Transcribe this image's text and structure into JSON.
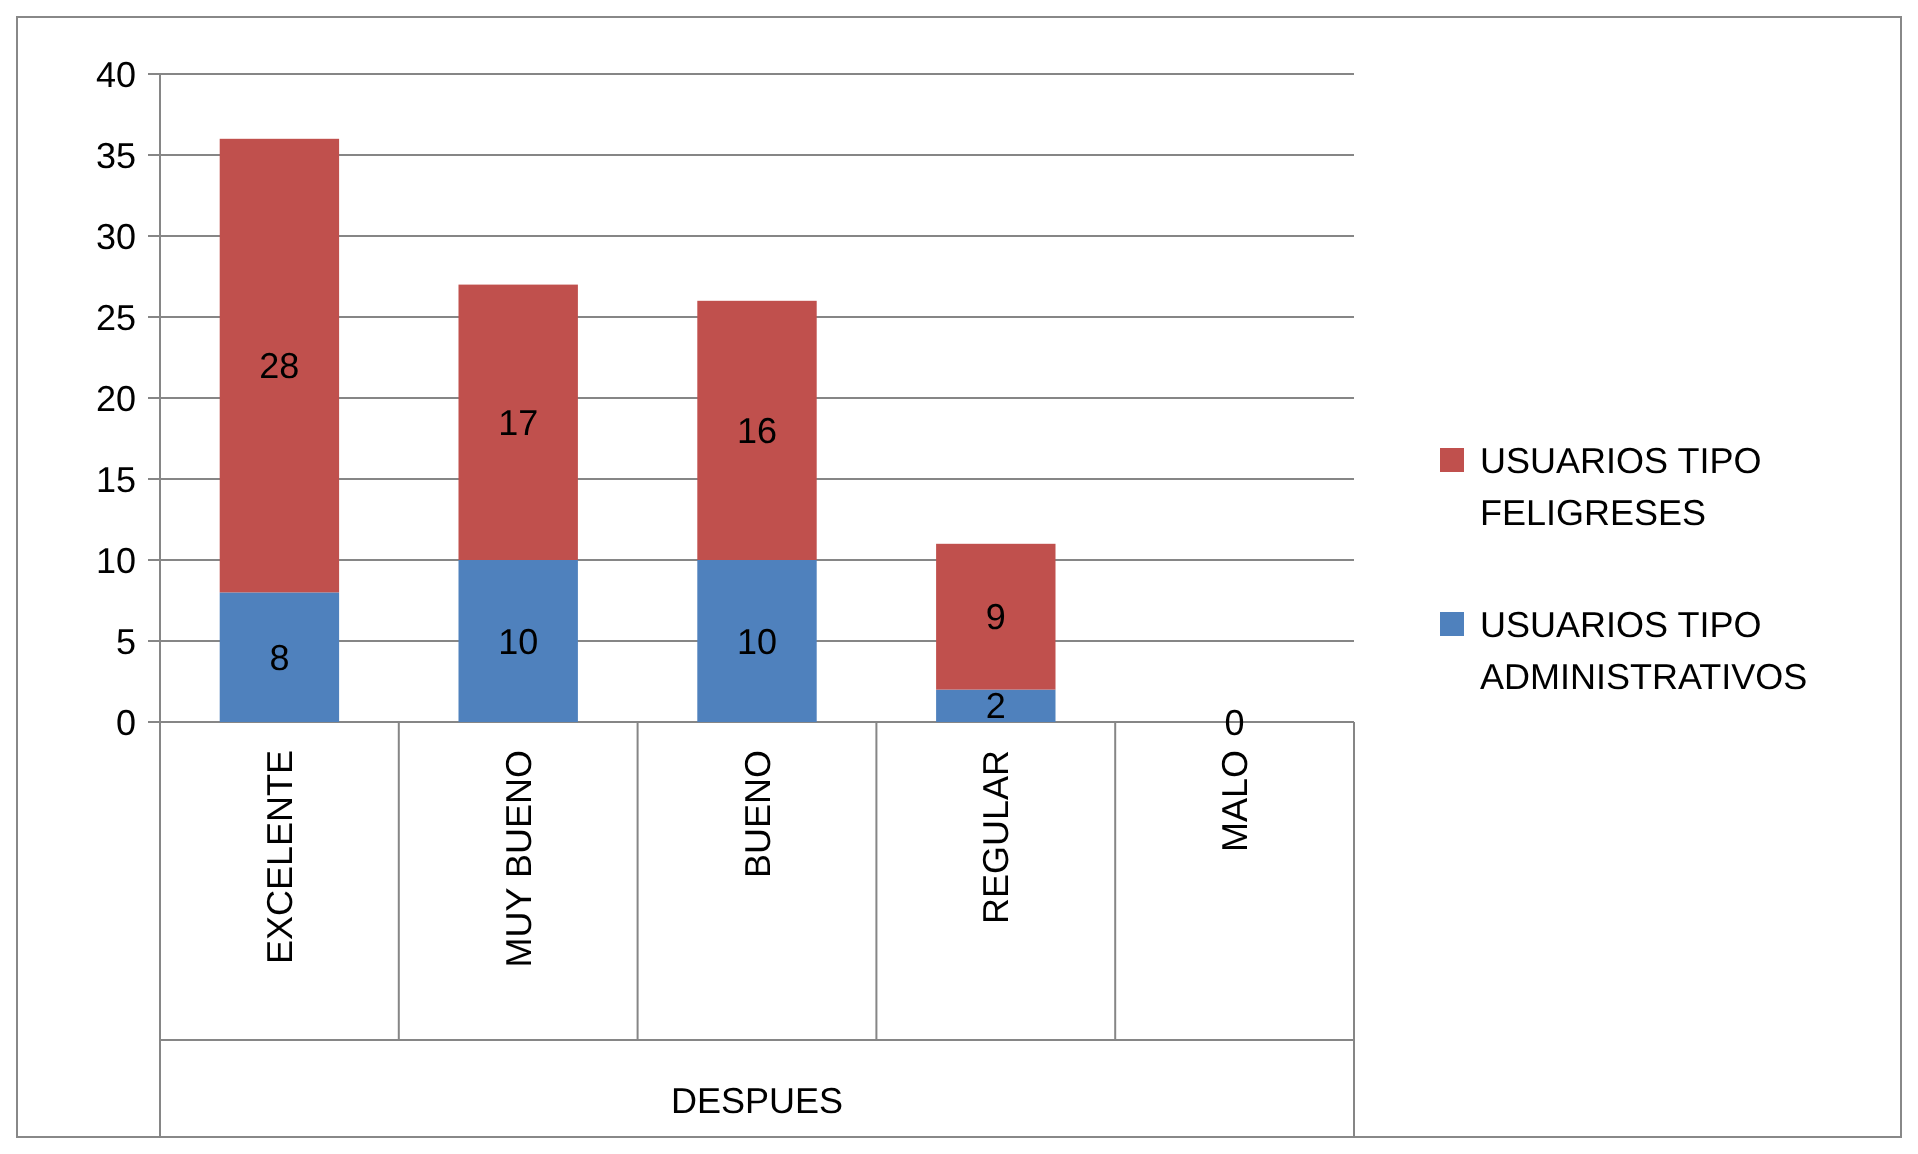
{
  "chart_data": {
    "type": "bar",
    "stacked": true,
    "categories": [
      "EXCELENTE",
      "MUY BUENO",
      "BUENO",
      "REGULAR",
      "MALO"
    ],
    "xlabel": "DESPUES",
    "series": [
      {
        "name": "USUARIOS TIPO ADMINISTRATIVOS",
        "color": "#4f81bd",
        "values": [
          8,
          10,
          10,
          2,
          0
        ],
        "value_labels": [
          "8",
          "10",
          "10",
          "2",
          "0"
        ]
      },
      {
        "name": "USUARIOS TIPO FELIGRESES",
        "color": "#c0504d",
        "values": [
          28,
          17,
          16,
          9,
          0
        ],
        "value_labels": [
          "28",
          "17",
          "16",
          "9",
          null
        ]
      }
    ],
    "ylim": [
      0,
      40
    ],
    "yticks": [
      0,
      5,
      10,
      15,
      20,
      25,
      30,
      35,
      40
    ],
    "grid": "y",
    "legend": "right"
  }
}
